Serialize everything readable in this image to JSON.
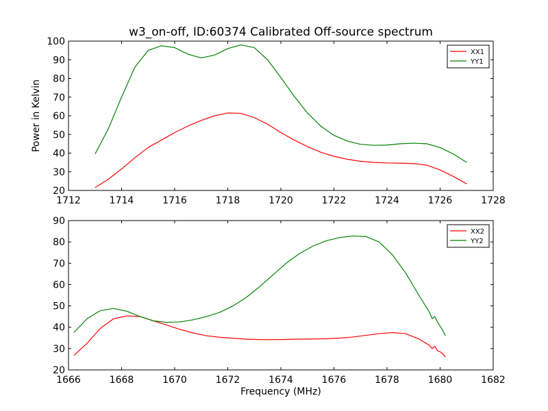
{
  "figure": {
    "title": "w3_on-off, ID:60374 Calibrated Off-source spectrum",
    "ylabel": "Power in Kelvin",
    "xlabel": "Frequency (MHz)"
  },
  "chart_data": [
    {
      "type": "line",
      "title": "w3_on-off, ID:60374 Calibrated Off-source spectrum",
      "xlabel": "",
      "ylabel": "Power in Kelvin",
      "xlim": [
        1712,
        1728
      ],
      "ylim": [
        20,
        100
      ],
      "xticks": [
        1712,
        1714,
        1716,
        1718,
        1720,
        1722,
        1724,
        1726,
        1728
      ],
      "yticks": [
        20,
        30,
        40,
        50,
        60,
        70,
        80,
        90,
        100
      ],
      "grid": false,
      "legend": "top-right",
      "series": [
        {
          "name": "XX1",
          "color": "#ff0000",
          "x": [
            1713.0,
            1713.5,
            1714.0,
            1714.5,
            1715.0,
            1715.5,
            1716.0,
            1716.5,
            1717.0,
            1717.5,
            1718.0,
            1718.5,
            1719.0,
            1719.5,
            1720.0,
            1720.5,
            1721.0,
            1721.5,
            1722.0,
            1722.5,
            1723.0,
            1723.5,
            1724.0,
            1724.5,
            1725.0,
            1725.5,
            1726.0,
            1726.5,
            1727.0
          ],
          "y": [
            21.5,
            26.0,
            31.5,
            37.5,
            43.0,
            47.0,
            51.0,
            54.5,
            57.5,
            60.0,
            61.5,
            61.3,
            59.0,
            55.5,
            51.0,
            47.0,
            43.5,
            40.5,
            38.3,
            36.7,
            35.6,
            35.0,
            34.7,
            34.6,
            34.4,
            33.5,
            31.0,
            27.5,
            23.5
          ]
        },
        {
          "name": "YY1",
          "color": "#008000",
          "x": [
            1713.0,
            1713.5,
            1714.0,
            1714.5,
            1715.0,
            1715.5,
            1716.0,
            1716.5,
            1717.0,
            1717.5,
            1718.0,
            1718.5,
            1719.0,
            1719.5,
            1720.0,
            1720.5,
            1721.0,
            1721.5,
            1722.0,
            1722.5,
            1723.0,
            1723.5,
            1724.0,
            1724.5,
            1725.0,
            1725.5,
            1726.0,
            1726.5,
            1727.0
          ],
          "y": [
            39.5,
            53.0,
            70.0,
            86.0,
            95.0,
            97.5,
            96.5,
            93.0,
            91.0,
            92.5,
            96.0,
            98.0,
            96.5,
            90.0,
            80.5,
            70.5,
            61.5,
            54.5,
            49.5,
            46.5,
            44.7,
            44.2,
            44.3,
            45.0,
            45.3,
            45.0,
            43.0,
            39.5,
            35.0
          ]
        }
      ]
    },
    {
      "type": "line",
      "title": "",
      "xlabel": "Frequency (MHz)",
      "ylabel": "",
      "xlim": [
        1666,
        1682
      ],
      "ylim": [
        20,
        90
      ],
      "xticks": [
        1666,
        1668,
        1670,
        1672,
        1674,
        1676,
        1678,
        1680,
        1682
      ],
      "yticks": [
        20,
        30,
        40,
        50,
        60,
        70,
        80,
        90
      ],
      "grid": false,
      "legend": "top-right",
      "series": [
        {
          "name": "XX2",
          "color": "#ff0000",
          "x": [
            1666.2,
            1666.7,
            1667.2,
            1667.7,
            1668.2,
            1668.7,
            1669.2,
            1669.7,
            1670.2,
            1670.7,
            1671.2,
            1671.7,
            1672.2,
            1672.7,
            1673.2,
            1673.7,
            1674.2,
            1674.7,
            1675.2,
            1675.7,
            1676.2,
            1676.7,
            1677.2,
            1677.7,
            1678.2,
            1678.7,
            1679.2,
            1679.6,
            1679.7,
            1679.8,
            1679.9,
            1680.0,
            1680.1,
            1680.2
          ],
          "y": [
            26.8,
            32.5,
            39.5,
            44.0,
            45.3,
            45.0,
            43.0,
            41.0,
            39.0,
            37.3,
            36.0,
            35.3,
            34.8,
            34.4,
            34.2,
            34.2,
            34.3,
            34.4,
            34.5,
            34.6,
            34.9,
            35.4,
            36.2,
            37.0,
            37.5,
            37.0,
            34.5,
            31.5,
            30.0,
            31.0,
            29.0,
            28.5,
            27.5,
            26.0
          ]
        },
        {
          "name": "YY2",
          "color": "#008000",
          "x": [
            1666.2,
            1666.7,
            1667.2,
            1667.7,
            1668.2,
            1668.7,
            1669.2,
            1669.7,
            1670.2,
            1670.7,
            1671.2,
            1671.7,
            1672.2,
            1672.7,
            1673.2,
            1673.7,
            1674.2,
            1674.7,
            1675.2,
            1675.7,
            1676.2,
            1676.7,
            1677.2,
            1677.7,
            1678.2,
            1678.7,
            1679.2,
            1679.6,
            1679.7,
            1679.8,
            1679.9,
            1680.0,
            1680.1,
            1680.2
          ],
          "y": [
            37.5,
            44.0,
            47.8,
            48.8,
            47.5,
            45.0,
            43.0,
            42.3,
            42.5,
            43.5,
            45.0,
            47.0,
            50.0,
            54.0,
            59.0,
            64.5,
            70.0,
            74.5,
            78.0,
            80.5,
            82.0,
            82.8,
            82.5,
            80.0,
            74.0,
            65.5,
            55.0,
            47.0,
            44.0,
            45.0,
            42.5,
            40.5,
            38.5,
            36.0
          ]
        }
      ]
    }
  ]
}
